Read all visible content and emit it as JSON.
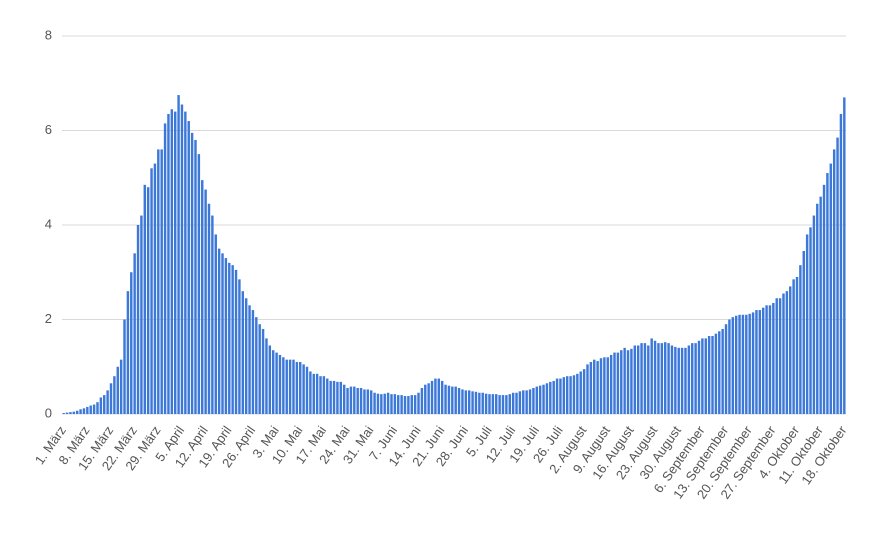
{
  "chart_data": {
    "type": "bar",
    "categories": [
      "1. März",
      null,
      null,
      null,
      null,
      null,
      null,
      "8. März",
      null,
      null,
      null,
      null,
      null,
      null,
      "15. März",
      null,
      null,
      null,
      null,
      null,
      null,
      "22. März",
      null,
      null,
      null,
      null,
      null,
      null,
      "29. März",
      null,
      null,
      null,
      null,
      null,
      null,
      "5. April",
      null,
      null,
      null,
      null,
      null,
      null,
      "12. April",
      null,
      null,
      null,
      null,
      null,
      null,
      "19. April",
      null,
      null,
      null,
      null,
      null,
      null,
      "26. April",
      null,
      null,
      null,
      null,
      null,
      null,
      "3. Mai",
      null,
      null,
      null,
      null,
      null,
      null,
      "10. Mai",
      null,
      null,
      null,
      null,
      null,
      null,
      "17. Mai",
      null,
      null,
      null,
      null,
      null,
      null,
      "24. Mai",
      null,
      null,
      null,
      null,
      null,
      null,
      "31. Mai",
      null,
      null,
      null,
      null,
      null,
      null,
      "7. Juni",
      null,
      null,
      null,
      null,
      null,
      null,
      "14. Juni",
      null,
      null,
      null,
      null,
      null,
      null,
      "21. Juni",
      null,
      null,
      null,
      null,
      null,
      null,
      "28. Juni",
      null,
      null,
      null,
      null,
      null,
      null,
      "5. Juli",
      null,
      null,
      null,
      null,
      null,
      null,
      "12. Juli",
      null,
      null,
      null,
      null,
      null,
      null,
      "19. Juli",
      null,
      null,
      null,
      null,
      null,
      null,
      "26. Juli",
      null,
      null,
      null,
      null,
      null,
      null,
      "2. August",
      null,
      null,
      null,
      null,
      null,
      null,
      "9. August",
      null,
      null,
      null,
      null,
      null,
      null,
      "16. August",
      null,
      null,
      null,
      null,
      null,
      null,
      "23. August",
      null,
      null,
      null,
      null,
      null,
      null,
      "30. August",
      null,
      null,
      null,
      null,
      null,
      null,
      "6. September",
      null,
      null,
      null,
      null,
      null,
      null,
      "13. September",
      null,
      null,
      null,
      null,
      null,
      null,
      "20. September",
      null,
      null,
      null,
      null,
      null,
      null,
      "27. September",
      null,
      null,
      null,
      null,
      null,
      null,
      "4. Oktober",
      null,
      null,
      null,
      null,
      null,
      null,
      "11. Oktober",
      null,
      null,
      null,
      null,
      null,
      null,
      "18. Oktober"
    ],
    "values": [
      0.02,
      0.03,
      0.04,
      0.05,
      0.07,
      0.1,
      0.12,
      0.15,
      0.18,
      0.2,
      0.25,
      0.35,
      0.4,
      0.5,
      0.65,
      0.8,
      1.0,
      1.15,
      2.0,
      2.6,
      3.0,
      3.4,
      4.0,
      4.2,
      4.85,
      4.8,
      5.2,
      5.3,
      5.6,
      5.6,
      6.15,
      6.35,
      6.45,
      6.4,
      6.75,
      6.55,
      6.4,
      6.2,
      5.95,
      5.8,
      5.5,
      4.95,
      4.75,
      4.45,
      4.2,
      3.8,
      3.5,
      3.4,
      3.3,
      3.2,
      3.15,
      3.05,
      2.85,
      2.6,
      2.45,
      2.3,
      2.2,
      2.05,
      1.9,
      1.8,
      1.6,
      1.45,
      1.35,
      1.3,
      1.25,
      1.2,
      1.15,
      1.15,
      1.15,
      1.1,
      1.1,
      1.05,
      1.0,
      0.9,
      0.85,
      0.85,
      0.8,
      0.8,
      0.75,
      0.7,
      0.7,
      0.68,
      0.68,
      0.62,
      0.55,
      0.58,
      0.58,
      0.55,
      0.55,
      0.52,
      0.52,
      0.5,
      0.45,
      0.43,
      0.42,
      0.43,
      0.45,
      0.42,
      0.42,
      0.4,
      0.4,
      0.38,
      0.38,
      0.4,
      0.4,
      0.45,
      0.55,
      0.62,
      0.65,
      0.7,
      0.75,
      0.75,
      0.7,
      0.62,
      0.6,
      0.58,
      0.58,
      0.55,
      0.52,
      0.5,
      0.5,
      0.48,
      0.47,
      0.45,
      0.45,
      0.43,
      0.42,
      0.42,
      0.42,
      0.4,
      0.4,
      0.4,
      0.42,
      0.45,
      0.45,
      0.48,
      0.5,
      0.5,
      0.52,
      0.55,
      0.58,
      0.6,
      0.62,
      0.65,
      0.68,
      0.7,
      0.75,
      0.75,
      0.78,
      0.8,
      0.8,
      0.82,
      0.85,
      0.9,
      0.95,
      1.05,
      1.1,
      1.15,
      1.12,
      1.18,
      1.2,
      1.2,
      1.25,
      1.3,
      1.3,
      1.35,
      1.4,
      1.35,
      1.38,
      1.45,
      1.45,
      1.5,
      1.5,
      1.45,
      1.6,
      1.55,
      1.5,
      1.5,
      1.52,
      1.5,
      1.45,
      1.42,
      1.4,
      1.4,
      1.4,
      1.45,
      1.5,
      1.5,
      1.55,
      1.6,
      1.6,
      1.65,
      1.65,
      1.7,
      1.75,
      1.8,
      1.9,
      2.0,
      2.05,
      2.08,
      2.1,
      2.1,
      2.1,
      2.12,
      2.15,
      2.2,
      2.2,
      2.25,
      2.3,
      2.3,
      2.35,
      2.45,
      2.45,
      2.55,
      2.6,
      2.7,
      2.85,
      2.9,
      3.15,
      3.45,
      3.8,
      3.95,
      4.2,
      4.45,
      4.6,
      4.85,
      5.1,
      5.3,
      5.6,
      5.85,
      6.35,
      6.7
    ],
    "color": "#3c78d8",
    "ylim": [
      0,
      8
    ],
    "yticks": [
      0,
      2,
      4,
      6,
      8
    ],
    "grid": true
  }
}
